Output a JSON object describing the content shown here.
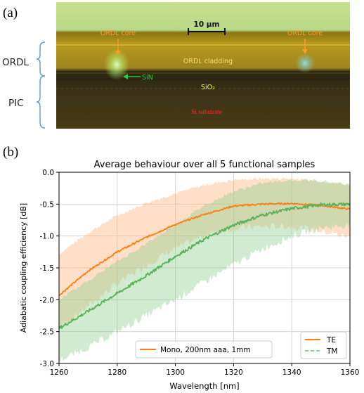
{
  "panel_a": {
    "label": "(a)",
    "side_labels": [
      "ORDL",
      "PIC"
    ],
    "scale_bar": "10 µm",
    "annotations": {
      "core_left": "ORDL core",
      "core_right": "ORDL core",
      "cladding": "ORDL cladding",
      "sin": "SiN",
      "sio2": "SiO₂",
      "substrate": "Si substrate"
    },
    "colors": {
      "core_label": "#ff9a2e",
      "sin_label": "#22cc44",
      "sio2_label": "#e8ff55",
      "substrate_label": "#ff2a2a",
      "bracket": "#5b9bd5"
    }
  },
  "panel_b": {
    "label": "(b)"
  },
  "chart_data": {
    "type": "line",
    "title": "Average behaviour over all 5 functional samples",
    "xlabel": "Wavelength [nm]",
    "ylabel": "Adiabatic coupling efficiency [dB]",
    "xlim": [
      1260,
      1360
    ],
    "ylim": [
      -3.0,
      0.0
    ],
    "xticks": [
      "1260",
      "1280",
      "1300",
      "1320",
      "1340",
      "1360"
    ],
    "yticks": [
      "0.0",
      "-0.5",
      "-1.0",
      "-1.5",
      "-2.0",
      "-2.5",
      "-3.0"
    ],
    "grid": true,
    "x": [
      1260,
      1270,
      1280,
      1290,
      1300,
      1310,
      1320,
      1330,
      1340,
      1350,
      1360
    ],
    "series": [
      {
        "name": "TE",
        "color": "#ff7f0e",
        "style": "solid",
        "values": [
          -1.93,
          -1.55,
          -1.25,
          -1.02,
          -0.82,
          -0.66,
          -0.53,
          -0.5,
          -0.49,
          -0.52,
          -0.58
        ],
        "band_upper": [
          -1.28,
          -0.95,
          -0.68,
          -0.48,
          -0.33,
          -0.2,
          -0.12,
          -0.1,
          -0.1,
          -0.14,
          -0.2
        ],
        "band_lower": [
          -2.45,
          -2.1,
          -1.75,
          -1.45,
          -1.2,
          -0.99,
          -0.88,
          -0.85,
          -0.85,
          -0.92,
          -1.02
        ]
      },
      {
        "name": "TM",
        "color": "#59b159",
        "style": "dashed",
        "values": [
          -2.45,
          -2.18,
          -1.9,
          -1.62,
          -1.32,
          -1.05,
          -0.83,
          -0.67,
          -0.57,
          -0.51,
          -0.5
        ],
        "band_upper": [
          -2.0,
          -1.7,
          -1.4,
          -1.12,
          -0.82,
          -0.52,
          -0.3,
          -0.17,
          -0.12,
          -0.13,
          -0.2
        ],
        "band_lower": [
          -2.95,
          -2.75,
          -2.5,
          -2.25,
          -2.0,
          -1.72,
          -1.45,
          -1.2,
          -1.0,
          -0.88,
          -0.82
        ]
      }
    ],
    "legend_series": {
      "entries": [
        "TE",
        "TM"
      ],
      "placement": "bottom-right"
    },
    "legend_note": {
      "text": "Mono, 200nm aaa, 1mm",
      "color": "#ff7f0e",
      "placement": "bottom-center"
    }
  }
}
